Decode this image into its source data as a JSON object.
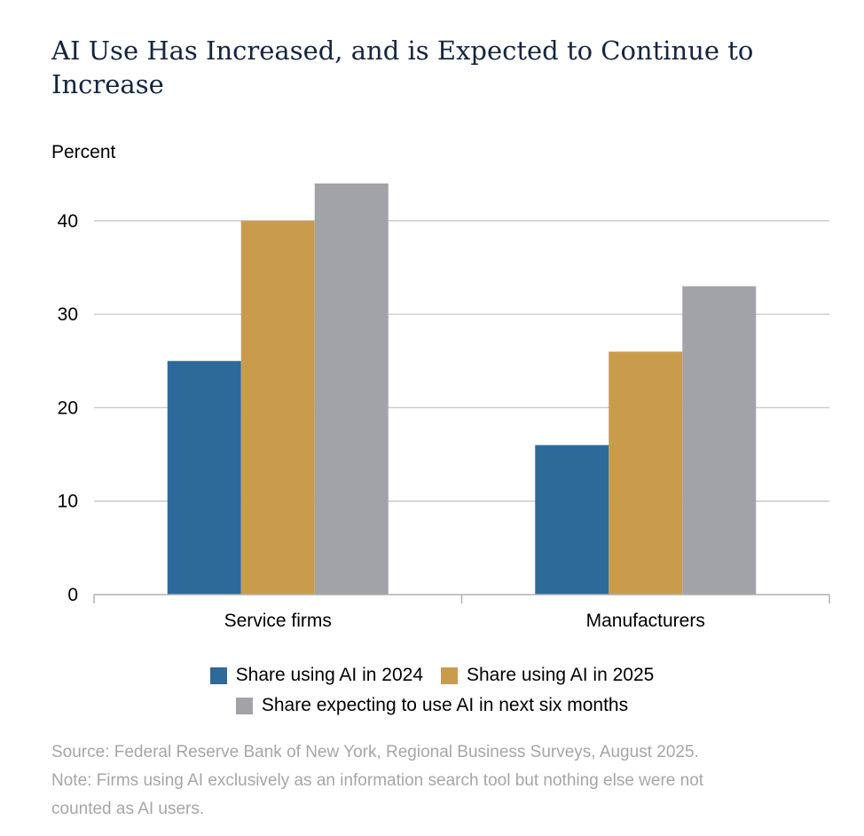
{
  "title": "AI Use Has Increased, and is Expected to Continue to Increase",
  "chart_data": {
    "type": "bar",
    "title": "AI Use Has Increased, and is Expected to Continue to Increase",
    "ylabel": "Percent",
    "xlabel": "",
    "categories": [
      "Service firms",
      "Manufacturers"
    ],
    "series": [
      {
        "name": "Share using AI in 2024",
        "values": [
          25,
          16
        ],
        "color": "#2e6a99"
      },
      {
        "name": "Share using AI in 2025",
        "values": [
          40,
          26
        ],
        "color": "#c99c4c"
      },
      {
        "name": "Share expecting to use AI in next six months",
        "values": [
          44,
          33
        ],
        "color": "#a2a3a8"
      }
    ],
    "ylim": [
      0,
      44
    ],
    "yticks": [
      0,
      10,
      20,
      30,
      40
    ],
    "ytick_labels": [
      "0",
      "10",
      "20",
      "30",
      "40"
    ],
    "grid": true,
    "legend_position": "bottom"
  },
  "source": "Source: Federal Reserve Bank of New York, Regional Business Surveys, August 2025.",
  "note_lines": [
    "Note: Firms using AI exclusively as an information search tool but nothing else were not",
    "counted as AI users."
  ]
}
